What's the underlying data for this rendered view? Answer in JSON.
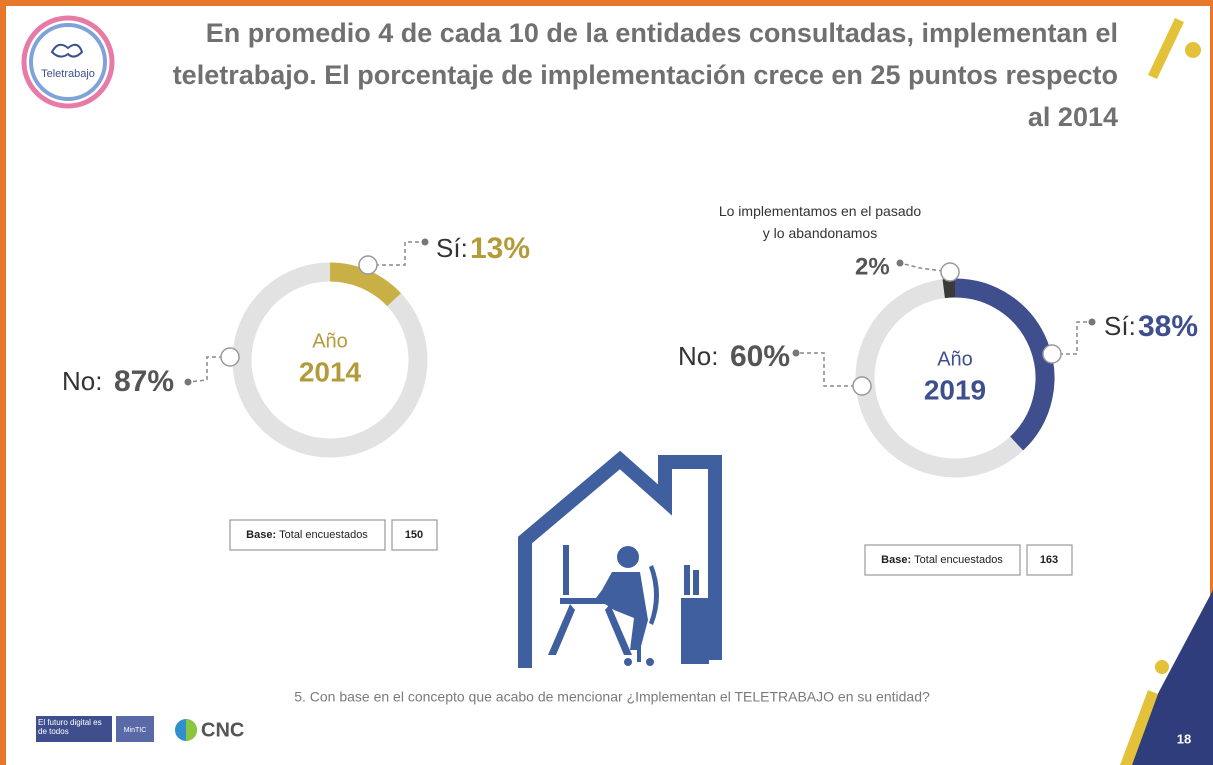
{
  "slide": {
    "title": "En promedio 4 de cada 10 de la entidades consultadas, implementan el teletrabajo. El porcentaje de implementación crece en 25 puntos respecto al 2014",
    "question": "5. Con base en el concepto que acabo de mencionar ¿Implementan el TELETRABAJO en su entidad?",
    "page_number": 18,
    "logo_text": "Teletrabajo",
    "footer_brand": "El futuro digital es de todos",
    "footer_ministry": "MinTIC",
    "footer_org": "CNC"
  },
  "chart_data": [
    {
      "type": "donut",
      "center_title": "Año",
      "center_year": "2014",
      "categories": [
        "Sí:",
        "No:"
      ],
      "values": [
        13,
        87
      ],
      "value_labels": [
        "13%",
        "87%"
      ],
      "colors": [
        "#c9b046",
        "#e2e2e2"
      ],
      "base_label": "Base:",
      "base_text": "Total encuestados",
      "base_n": 150
    },
    {
      "type": "donut",
      "center_title": "Año",
      "center_year": "2019",
      "categories": [
        "Sí:",
        "No:",
        "Lo implementamos en el pasado y lo abandonamos"
      ],
      "values": [
        38,
        60,
        2
      ],
      "value_labels": [
        "38%",
        "60%",
        "2%"
      ],
      "colors": [
        "#3f4f8e",
        "#e2e2e2",
        "#3a3a3a"
      ],
      "base_label": "Base:",
      "base_text": "Total encuestados",
      "base_n": 163
    }
  ]
}
